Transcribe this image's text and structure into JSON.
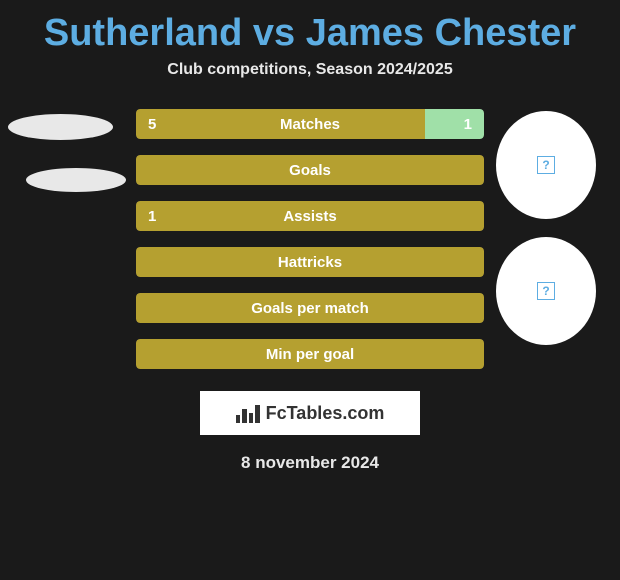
{
  "title": "Sutherland vs James Chester",
  "subtitle": "Club competitions, Season 2024/2025",
  "date": "8 november 2024",
  "logo_text": "FcTables.com",
  "colors": {
    "background": "#1a1a1a",
    "title_color": "#5dade2",
    "text_color": "#e8e8e8",
    "bar_track": "#3a3a3a",
    "bar_left": "#b5a030",
    "bar_right": "#a0e0a8",
    "circle_bg": "#ffffff"
  },
  "bars": [
    {
      "label": "Matches",
      "left_value": "5",
      "right_value": "1",
      "left_pct": 83,
      "right_pct": 17,
      "show_left": true,
      "show_right": true
    },
    {
      "label": "Goals",
      "left_value": "",
      "right_value": "",
      "left_pct": 100,
      "right_pct": 0,
      "show_left": false,
      "show_right": false
    },
    {
      "label": "Assists",
      "left_value": "1",
      "right_value": "",
      "left_pct": 100,
      "right_pct": 0,
      "show_left": true,
      "show_right": false
    },
    {
      "label": "Hattricks",
      "left_value": "",
      "right_value": "",
      "left_pct": 100,
      "right_pct": 0,
      "show_left": false,
      "show_right": false
    },
    {
      "label": "Goals per match",
      "left_value": "",
      "right_value": "",
      "left_pct": 100,
      "right_pct": 0,
      "show_left": false,
      "show_right": false
    },
    {
      "label": "Min per goal",
      "left_value": "",
      "right_value": "",
      "left_pct": 100,
      "right_pct": 0,
      "show_left": false,
      "show_right": false
    }
  ]
}
